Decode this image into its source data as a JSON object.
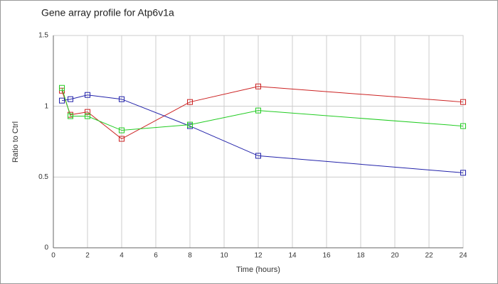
{
  "chart_data": {
    "type": "line",
    "title": "Gene array profile for Atp6v1a",
    "x_label": "Time (hours)",
    "y_label": "Ratio to Ctrl",
    "x": [
      0.5,
      1,
      2,
      4,
      8,
      12,
      24
    ],
    "series": [
      {
        "color": "#cc2222",
        "values": [
          1.11,
          0.94,
          0.96,
          0.77,
          1.03,
          1.14,
          1.03
        ]
      },
      {
        "color": "#2222aa",
        "values": [
          1.04,
          1.05,
          1.08,
          1.05,
          0.86,
          0.65,
          0.53
        ]
      },
      {
        "color": "#22cc22",
        "values": [
          1.13,
          0.93,
          0.93,
          0.83,
          0.87,
          0.97,
          0.86
        ]
      }
    ],
    "xlim": [
      0,
      24
    ],
    "xticks": [
      0,
      2,
      4,
      6,
      8,
      10,
      12,
      14,
      16,
      18,
      20,
      22,
      24
    ],
    "ylim": [
      0,
      1.5
    ],
    "yticks": [
      0,
      0.5,
      1,
      1.5
    ],
    "grid": true
  }
}
